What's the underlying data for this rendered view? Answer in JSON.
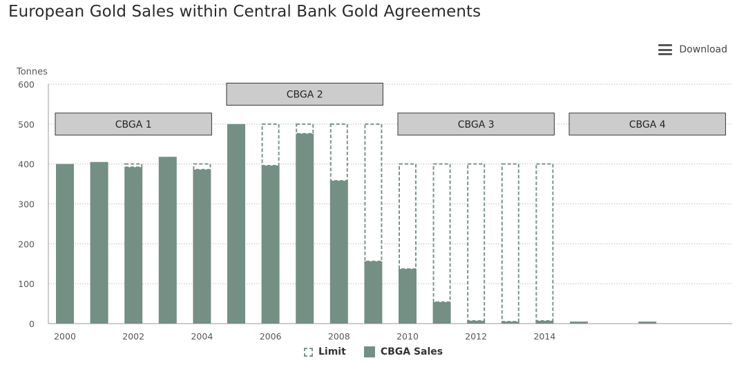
{
  "title": "European Gold Sales within Central Bank Gold Agreements",
  "toolbar": {
    "download_label": "Download",
    "menu_icon": "hamburger-menu-icon"
  },
  "colors": {
    "sales": "#748f84",
    "limit_stroke": "#7a9389",
    "agreement_box_fill": "#cccccc",
    "agreement_box_stroke": "#333333"
  },
  "chart_data": {
    "type": "bar",
    "ylabel": "Tonnes",
    "ylim": [
      0,
      600
    ],
    "yticks": [
      0,
      100,
      200,
      300,
      400,
      500,
      600
    ],
    "x": [
      2000,
      2001,
      2002,
      2003,
      2004,
      2005,
      2006,
      2007,
      2008,
      2009,
      2010,
      2011,
      2012,
      2013,
      2014,
      2015,
      2016,
      2017,
      2018
    ],
    "xtick_labels": [
      "2000",
      "2002",
      "2004",
      "2006",
      "2008",
      "2010",
      "2012",
      "2014"
    ],
    "series": [
      {
        "name": "Limit",
        "style": "dashed-outline",
        "values": [
          400,
          400,
          400,
          400,
          400,
          500,
          500,
          500,
          500,
          500,
          400,
          400,
          400,
          400,
          400,
          null,
          null,
          null,
          null
        ]
      },
      {
        "name": "CBGA Sales",
        "style": "solid",
        "values": [
          400,
          405,
          392,
          418,
          386,
          500,
          396,
          476,
          358,
          156,
          137,
          54,
          7,
          5,
          7,
          5,
          0,
          5,
          0
        ]
      }
    ],
    "agreements": [
      {
        "label": "CBGA 1",
        "start": 2000,
        "end": 2004,
        "level": 500
      },
      {
        "label": "CBGA 2",
        "start": 2005,
        "end": 2009,
        "level": 575
      },
      {
        "label": "CBGA 3",
        "start": 2010,
        "end": 2014,
        "level": 500
      },
      {
        "label": "CBGA 4",
        "start": 2015,
        "end": 2019,
        "level": 500
      }
    ],
    "grid": true,
    "legend_position": "bottom-center"
  }
}
